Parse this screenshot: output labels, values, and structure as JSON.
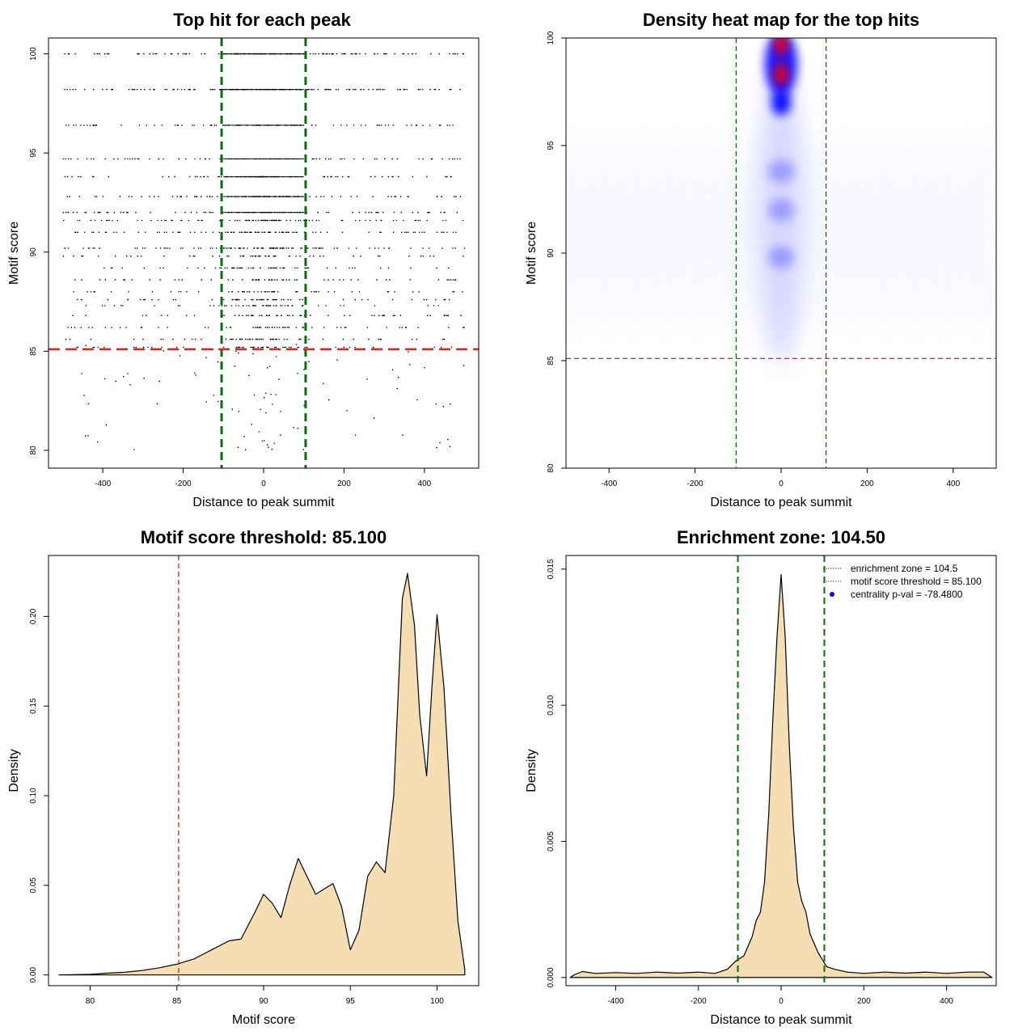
{
  "colors": {
    "threshold_line": "#d62728",
    "zone_line": "#0a6e0a",
    "density_fill": "#f5deb3",
    "heat_low": "#ffffff",
    "heat_mid": "#0000ff",
    "heat_high": "#ff0000",
    "legend_dot": "#0000ff"
  },
  "chart_data": [
    {
      "id": "scatter",
      "type": "scatter",
      "title": "Top hit for each peak",
      "xlabel": "Distance to peak summit",
      "ylabel": "Motif score",
      "xlim": [
        -535,
        535
      ],
      "ylim": [
        79.1,
        100.8
      ],
      "xticks": [
        -400,
        -200,
        0,
        200,
        400
      ],
      "yticks": [
        80,
        85,
        90,
        95,
        100
      ],
      "grid": false,
      "score_levels": [
        100,
        98.2,
        96.4,
        94.7,
        93.8,
        92.8,
        92.0,
        91.6,
        91.0,
        90.2,
        89.8,
        89.2,
        88.6,
        88.0,
        87.6,
        87.3,
        86.8,
        86.2,
        85.6,
        85.2
      ],
      "x_range": [
        -500,
        500
      ],
      "vlines": [
        -104.5,
        104.5
      ],
      "hline": 85.1,
      "point_color": "#000000"
    },
    {
      "id": "heatmap",
      "type": "heatmap",
      "title": "Density heat map for the top hits",
      "xlabel": "Distance to peak summit",
      "ylabel": "Motif score",
      "xlim": [
        -500,
        500
      ],
      "ylim": [
        80,
        100
      ],
      "xticks": [
        -400,
        -200,
        0,
        200,
        400
      ],
      "yticks": [
        80,
        85,
        90,
        95,
        100
      ],
      "grid": false,
      "vlines": [
        -104.5,
        104.5
      ],
      "hline": 85.1,
      "hotspots": [
        {
          "x": 0,
          "y": 99.7,
          "intensity": "red"
        },
        {
          "x": 0,
          "y": 98.3,
          "intensity": "red"
        },
        {
          "x": 0,
          "y": 97.0,
          "intensity": "blue"
        },
        {
          "x": 0,
          "y": 93.8,
          "intensity": "light-blue"
        },
        {
          "x": 0,
          "y": 92.0,
          "intensity": "light-blue"
        },
        {
          "x": 0,
          "y": 89.8,
          "intensity": "light-blue"
        }
      ]
    },
    {
      "id": "score-density",
      "type": "area",
      "title": "Motif score threshold: 85.100",
      "xlabel": "Motif score",
      "ylabel": "Density",
      "xlim": [
        77.6,
        102.4
      ],
      "ylim": [
        -0.006,
        0.234
      ],
      "xticks": [
        80,
        85,
        90,
        95,
        100
      ],
      "yticks": [
        0.0,
        0.05,
        0.1,
        0.15,
        0.2
      ],
      "ytick_labels": [
        "0.00",
        "0.05",
        "0.10",
        "0.15",
        "0.20"
      ],
      "grid": false,
      "vlines": [
        85.1
      ],
      "x": [
        78.2,
        80,
        81,
        82,
        83,
        84,
        85,
        86,
        87,
        88,
        88.7,
        89.5,
        90,
        90.5,
        91,
        91.5,
        92,
        92.5,
        93,
        93.5,
        94,
        94.5,
        95,
        95.5,
        96,
        96.5,
        97,
        97.5,
        98,
        98.3,
        98.7,
        99,
        99.4,
        99.7,
        100,
        100.4,
        100.8,
        101.2,
        101.6
      ],
      "y": [
        0.0,
        0.0003,
        0.001,
        0.0015,
        0.0025,
        0.004,
        0.006,
        0.009,
        0.014,
        0.019,
        0.02,
        0.035,
        0.045,
        0.04,
        0.032,
        0.05,
        0.065,
        0.055,
        0.045,
        0.048,
        0.051,
        0.038,
        0.014,
        0.025,
        0.055,
        0.063,
        0.057,
        0.1,
        0.21,
        0.224,
        0.195,
        0.145,
        0.111,
        0.16,
        0.201,
        0.16,
        0.09,
        0.03,
        0.003
      ]
    },
    {
      "id": "distance-density",
      "type": "area",
      "title": "Enrichment zone: 104.50",
      "xlabel": "Distance to peak summit",
      "ylabel": "Density",
      "xlim": [
        -520,
        520
      ],
      "ylim": [
        -0.0003,
        0.0155
      ],
      "xticks": [
        -400,
        -200,
        0,
        200,
        400
      ],
      "yticks": [
        0.0,
        0.005,
        0.01,
        0.015
      ],
      "ytick_labels": [
        "0.000",
        "0.005",
        "0.010",
        "0.015"
      ],
      "grid": false,
      "vlines": [
        -104.5,
        104.5
      ],
      "x": [
        -510,
        -500,
        -480,
        -450,
        -400,
        -350,
        -300,
        -250,
        -200,
        -160,
        -130,
        -110,
        -90,
        -70,
        -60,
        -50,
        -40,
        -30,
        -20,
        -10,
        0,
        10,
        20,
        30,
        40,
        50,
        60,
        70,
        90,
        110,
        130,
        160,
        200,
        250,
        300,
        350,
        400,
        450,
        490,
        510
      ],
      "y": [
        0.0,
        0.0001,
        0.00022,
        0.00015,
        0.00018,
        0.00015,
        0.0002,
        0.00016,
        0.0002,
        0.00015,
        0.0003,
        0.0006,
        0.0008,
        0.0015,
        0.0021,
        0.0024,
        0.0035,
        0.006,
        0.0095,
        0.0125,
        0.0148,
        0.0125,
        0.0085,
        0.0055,
        0.0035,
        0.0028,
        0.0024,
        0.0016,
        0.0009,
        0.0004,
        0.0003,
        0.0002,
        0.00015,
        0.0002,
        0.00016,
        0.0002,
        0.00015,
        0.0002,
        0.0002,
        0.0
      ],
      "legend": {
        "position": "top-right",
        "items": [
          {
            "label": "enrichment zone = 104.5",
            "style": "dotted",
            "color": "#0a6e0a"
          },
          {
            "label": "motif score threshold = 85.100",
            "style": "dotted",
            "color": "#d62728"
          },
          {
            "label": "centrality p-val = -78.4800",
            "style": "point",
            "color": "#0000ff"
          }
        ]
      }
    }
  ]
}
